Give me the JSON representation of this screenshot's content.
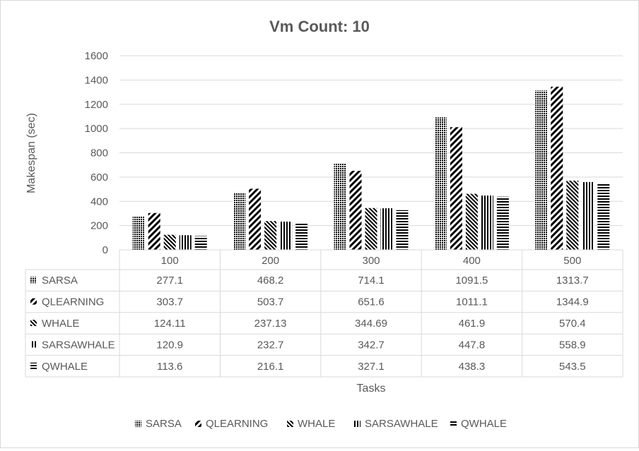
{
  "chart_data": {
    "type": "bar",
    "title": "Vm Count: 10",
    "xlabel": "Tasks",
    "ylabel": "Makespan (sec)",
    "ylim": [
      0,
      1600
    ],
    "yticks": [
      "0",
      "200",
      "400",
      "600",
      "800",
      "1000",
      "1200",
      "1400",
      "1600"
    ],
    "grid": true,
    "legend_position": "bottom",
    "data_table": true,
    "categories": [
      "100",
      "200",
      "300",
      "400",
      "500"
    ],
    "series": [
      {
        "name": "SARSA",
        "pattern": "dots",
        "values": [
          277.1,
          468.2,
          714.1,
          1091.5,
          1313.7
        ],
        "labels": [
          "277.1",
          "468.2",
          "714.1",
          "1091.5",
          "1313.7"
        ]
      },
      {
        "name": "QLEARNING",
        "pattern": "wide-diagonal",
        "values": [
          303.7,
          503.7,
          651.6,
          1011.1,
          1344.9
        ],
        "labels": [
          "303.7",
          "503.7",
          "651.6",
          "1011.1",
          "1344.9"
        ]
      },
      {
        "name": "WHALE",
        "pattern": "narrow-backdiagonal",
        "values": [
          124.11,
          237.13,
          344.69,
          461.9,
          570.4
        ],
        "labels": [
          "124.11",
          "237.13",
          "344.69",
          "461.9",
          "570.4"
        ]
      },
      {
        "name": "SARSAWHALE",
        "pattern": "vertical",
        "values": [
          120.9,
          232.7,
          342.7,
          447.8,
          558.9
        ],
        "labels": [
          "120.9",
          "232.7",
          "342.7",
          "447.8",
          "558.9"
        ]
      },
      {
        "name": "QWHALE",
        "pattern": "horizontal",
        "values": [
          113.6,
          216.1,
          327.1,
          438.3,
          543.5
        ],
        "labels": [
          "113.6",
          "216.1",
          "327.1",
          "438.3",
          "543.5"
        ]
      }
    ],
    "colors": {
      "bar": "#000000",
      "text": "#595959",
      "grid": "#d9d9d9"
    }
  }
}
